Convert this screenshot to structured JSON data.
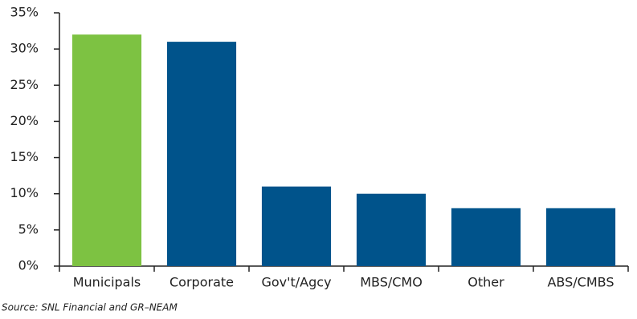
{
  "chart_data": {
    "type": "bar",
    "categories": [
      "Municipals",
      "Corporate",
      "Gov't/Agcy",
      "MBS/CMO",
      "Other",
      "ABS/CMBS"
    ],
    "values": [
      32,
      31,
      11,
      10,
      8,
      8
    ],
    "colors": [
      "#7dc242",
      "#00538b",
      "#00538b",
      "#00538b",
      "#00538b",
      "#00538b"
    ],
    "ylim": [
      0,
      35
    ],
    "yticks": [
      {
        "value": 0,
        "label": "0%"
      },
      {
        "value": 5,
        "label": "5%"
      },
      {
        "value": 10,
        "label": "10%"
      },
      {
        "value": 15,
        "label": "15%"
      },
      {
        "value": 20,
        "label": "20%"
      },
      {
        "value": 25,
        "label": "25%"
      },
      {
        "value": 30,
        "label": "30%"
      },
      {
        "value": 35,
        "label": "35%"
      }
    ],
    "grid": false,
    "source": "Source: SNL Financial and GR–NEAM"
  }
}
